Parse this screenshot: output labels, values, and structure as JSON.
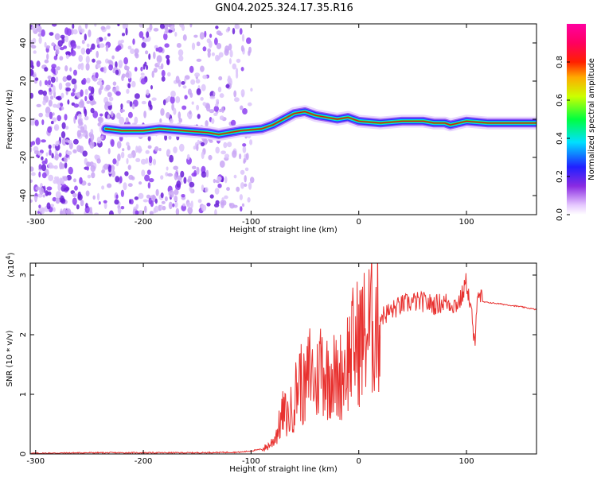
{
  "title": "GN04.2025.324.17.35.R16",
  "chart_data": [
    {
      "type": "heatmap",
      "name": "spectrogram",
      "xlabel": "Height of straight line (km)",
      "ylabel": "Frequency (Hz)",
      "xlim": [
        -305,
        165
      ],
      "ylim": [
        -50,
        50
      ],
      "xticks": [
        -300,
        -200,
        -100,
        0,
        100
      ],
      "yticks": [
        -40,
        -20,
        0,
        20,
        40
      ],
      "noise_region_x": [
        -305,
        -110
      ],
      "signal_track": {
        "x": [
          -235,
          -220,
          -200,
          -185,
          -140,
          -130,
          -110,
          -90,
          -80,
          -70,
          -60,
          -50,
          -45,
          -40,
          -30,
          -20,
          -10,
          0,
          20,
          40,
          60,
          70,
          80,
          85,
          100,
          120,
          165
        ],
        "y": [
          -5,
          -6,
          -6,
          -5,
          -7,
          -8,
          -6,
          -5,
          -3,
          0,
          3,
          4,
          3,
          2,
          1,
          0,
          1,
          -1,
          -2,
          -1,
          -1,
          -2,
          -2,
          -3,
          -1,
          -2,
          -2
        ]
      },
      "colorbar": {
        "label": "Normalized spectral amplitude",
        "range": [
          0,
          1
        ],
        "ticks": [
          0.0,
          0.2,
          0.4,
          0.6,
          0.8
        ]
      }
    },
    {
      "type": "line",
      "name": "snr",
      "xlabel": "Height of straight line (km)",
      "ylabel": "SNR (10 * v/v)",
      "multiplier": "(x10",
      "multiplier_exp": "4",
      "multiplier_close": ")",
      "xlim": [
        -305,
        165
      ],
      "ylim": [
        0,
        3.2
      ],
      "xticks": [
        -300,
        -200,
        -100,
        0,
        100
      ],
      "yticks": [
        0,
        1,
        2,
        3
      ],
      "line_color": "#e8312f",
      "series_points": {
        "x": [
          -305,
          -250,
          -150,
          -110,
          -100,
          -90,
          -85,
          -80,
          -75,
          -70,
          -65,
          -60,
          -55,
          -50,
          -45,
          -40,
          -35,
          -30,
          -25,
          -20,
          -15,
          -10,
          -5,
          0,
          5,
          10,
          20,
          30,
          40,
          50,
          60,
          70,
          80,
          90,
          95,
          100,
          105,
          108,
          110,
          115,
          130,
          150,
          165
        ],
        "y": [
          0.01,
          0.02,
          0.02,
          0.03,
          0.05,
          0.08,
          0.12,
          0.2,
          0.4,
          0.7,
          0.6,
          0.9,
          1.3,
          1.0,
          1.5,
          1.1,
          1.6,
          1.3,
          1.4,
          1.2,
          1.4,
          1.6,
          1.8,
          1.9,
          2.0,
          2.1,
          2.3,
          2.4,
          2.5,
          2.55,
          2.55,
          2.5,
          2.55,
          2.5,
          2.6,
          2.9,
          2.3,
          1.7,
          2.8,
          2.55,
          2.52,
          2.47,
          2.42
        ]
      }
    }
  ]
}
